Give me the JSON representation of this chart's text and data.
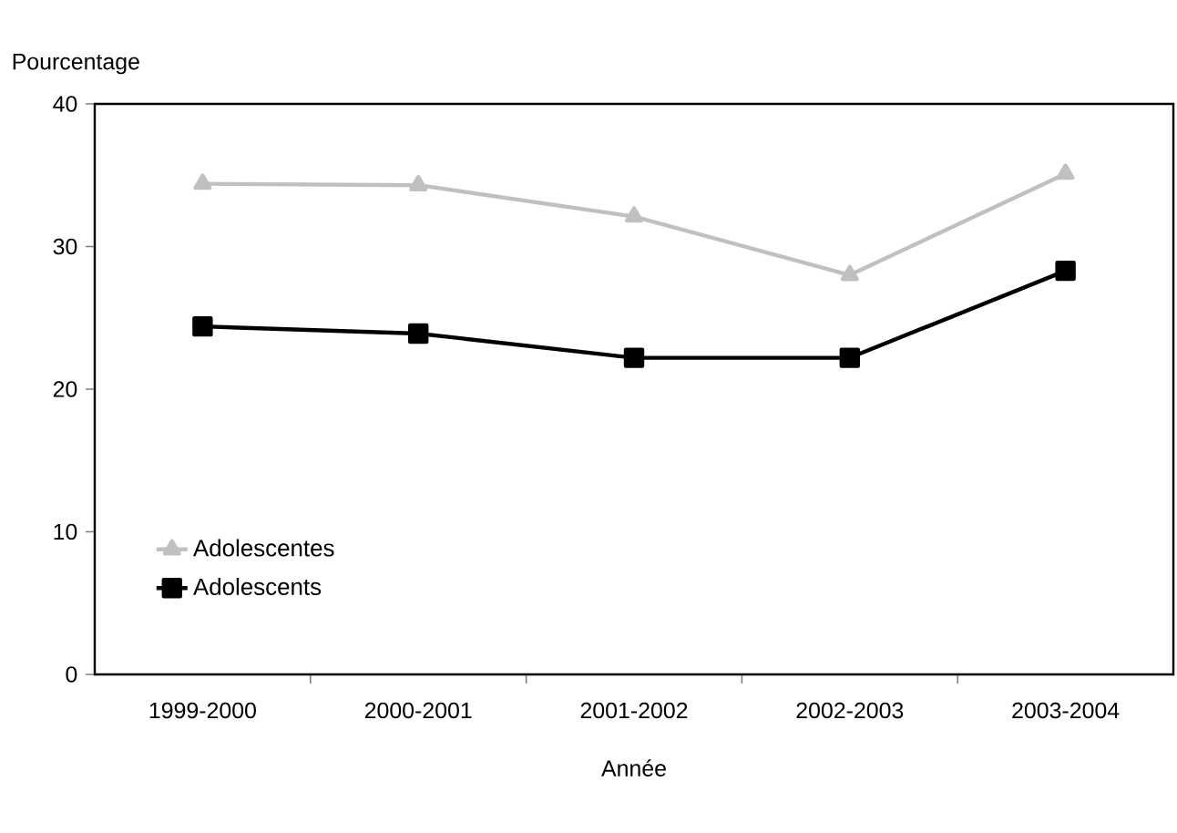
{
  "chart_data": {
    "type": "line",
    "ylabel": "Pourcentage",
    "xlabel": "Année",
    "categories": [
      "1999-2000",
      "2000-2001",
      "2001-2002",
      "2002-2003",
      "2003-2004"
    ],
    "series": [
      {
        "name": "Adolescentes",
        "color": "#c0c0c0",
        "marker": "triangle",
        "values": [
          34.4,
          34.3,
          32.1,
          28.0,
          35.1
        ]
      },
      {
        "name": "Adolescents",
        "color": "#000000",
        "marker": "square",
        "values": [
          24.4,
          23.9,
          22.2,
          22.2,
          28.3
        ]
      }
    ],
    "ylim": [
      0,
      40
    ],
    "yticks": [
      0,
      10,
      20,
      30,
      40
    ],
    "grid": false,
    "legend": "bottom left",
    "line_style": "solid"
  }
}
